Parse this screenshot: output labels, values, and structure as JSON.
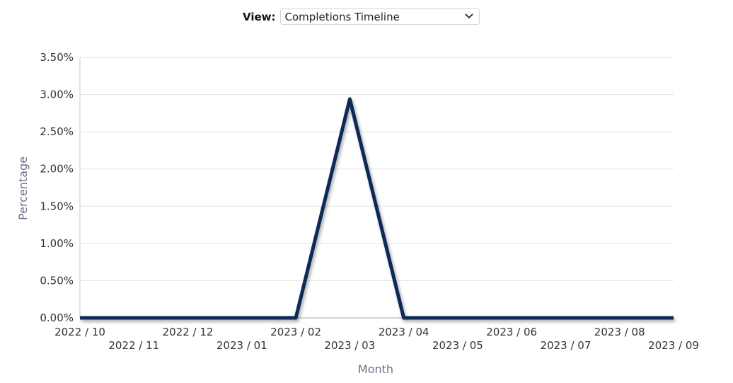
{
  "view": {
    "label": "View:",
    "selected": "Completions Timeline",
    "chevron_icon": "chevron-down-icon"
  },
  "chart_data": {
    "type": "line",
    "x": [
      "2022 / 10",
      "2022 / 11",
      "2022 / 12",
      "2023 / 01",
      "2023 / 02",
      "2023 / 03",
      "2023 / 04",
      "2023 / 05",
      "2023 / 06",
      "2023 / 07",
      "2023 / 08",
      "2023 / 09"
    ],
    "series": [
      {
        "values": [
          0,
          0,
          0,
          0,
          0,
          2.94,
          0,
          0,
          0,
          0,
          0,
          0
        ],
        "color": "#0d2b57"
      }
    ],
    "y_ticks": [
      "0.00%",
      "0.50%",
      "1.00%",
      "1.50%",
      "2.00%",
      "2.50%",
      "3.00%",
      "3.50%"
    ],
    "ylim": [
      0,
      3.5
    ],
    "xlabel": "Month",
    "ylabel": "Percentage",
    "grid": true
  }
}
